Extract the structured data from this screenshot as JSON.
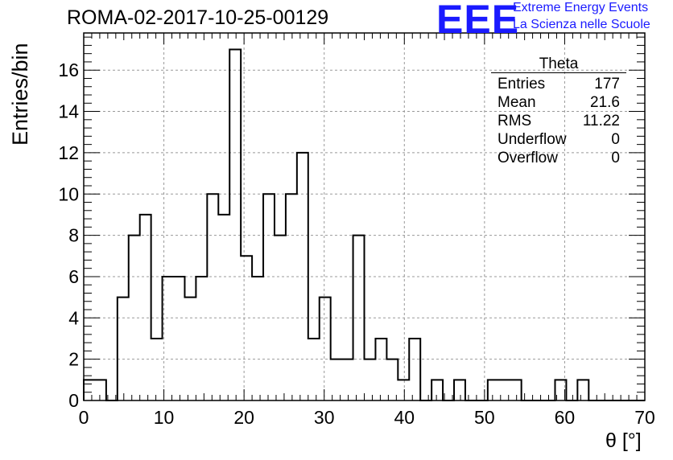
{
  "title": "ROMA-02-2017-10-25-00129",
  "logo": {
    "text": "EEE",
    "line1": "Extreme Energy Events",
    "line2": "La Scienza nelle Scuole",
    "color": "#1a1aff"
  },
  "stats": {
    "name": "Theta",
    "rows": [
      {
        "label": "Entries",
        "value": "177"
      },
      {
        "label": "Mean",
        "value": "21.6"
      },
      {
        "label": "RMS",
        "value": "11.22"
      },
      {
        "label": "Underflow",
        "value": "0"
      },
      {
        "label": "Overflow",
        "value": "0"
      }
    ]
  },
  "chart_data": {
    "type": "bar",
    "subtype": "step-histogram",
    "title": "ROMA-02-2017-10-25-00129",
    "xlabel": "θ [°]",
    "ylabel": "Entries/bin",
    "xlim": [
      0,
      70
    ],
    "ylim": [
      0,
      17.8
    ],
    "bin_width": 1.4,
    "bin_edges_start": 0,
    "values": [
      1,
      1,
      0,
      5,
      8,
      9,
      3,
      6,
      6,
      5,
      6,
      10,
      9,
      17,
      7,
      6,
      10,
      8,
      10,
      12,
      3,
      5,
      2,
      2,
      8,
      2,
      3,
      2,
      1,
      3,
      0,
      1,
      0,
      1,
      0,
      0,
      1,
      1,
      1,
      0,
      0,
      0,
      1,
      0,
      1,
      0,
      0,
      0,
      0,
      0
    ],
    "x_ticks": [
      0,
      10,
      20,
      30,
      40,
      50,
      60,
      70
    ],
    "y_ticks": [
      0,
      2,
      4,
      6,
      8,
      10,
      12,
      14,
      16
    ],
    "grid": true,
    "line_color": "#000000",
    "grid_color": "#999999"
  }
}
